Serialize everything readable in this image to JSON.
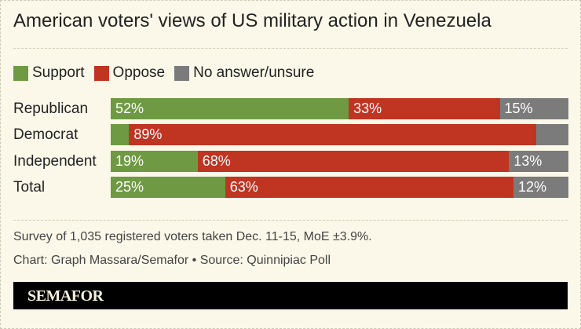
{
  "chart_data": {
    "type": "bar",
    "orientation": "horizontal-stacked-100",
    "title": "American voters' views of US military action in Venezuela",
    "legend_position": "top-left",
    "categories": [
      "Republican",
      "Democrat",
      "Independent",
      "Total"
    ],
    "series": [
      {
        "name": "Support",
        "color": "#6f9a43",
        "values": [
          52,
          4,
          19,
          25
        ],
        "labels": [
          "52%",
          "",
          "19%",
          "25%"
        ]
      },
      {
        "name": "Oppose",
        "color": "#c03422",
        "values": [
          33,
          89,
          68,
          63
        ],
        "labels": [
          "33%",
          "89%",
          "68%",
          "63%"
        ]
      },
      {
        "name": "No answer/unsure",
        "color": "#7b7b7b",
        "values": [
          15,
          7,
          13,
          12
        ],
        "labels": [
          "15%",
          "",
          "13%",
          "12%"
        ]
      }
    ]
  },
  "notes": {
    "survey": "Survey of 1,035 registered voters taken Dec. 11-15, MoE ±3.9%.",
    "credit": "Chart: Graph Massara/Semafor • Source: Quinnipiac Poll"
  },
  "footer": {
    "logo": "SEMAFOR"
  }
}
